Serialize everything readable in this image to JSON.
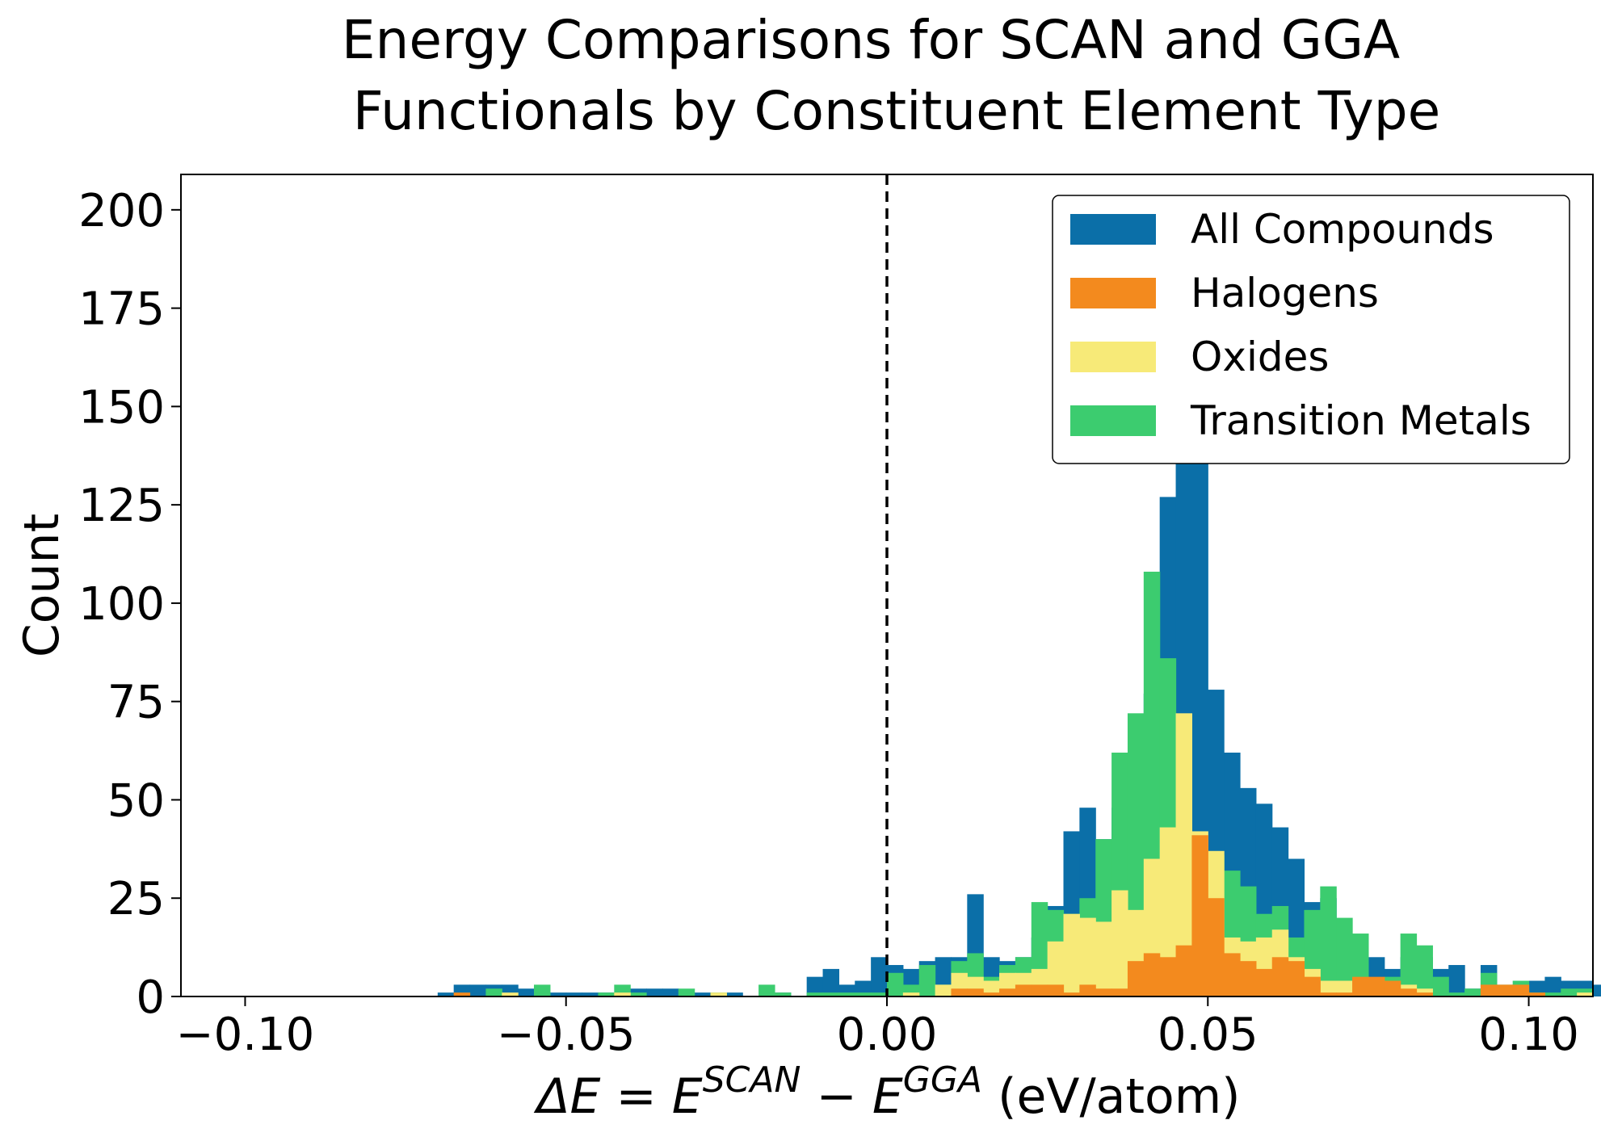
{
  "chart_data": {
    "type": "bar",
    "title_line1": "Energy Comparisons for SCAN and GGA",
    "title_line2": "Functionals by Constituent Element Type",
    "xlabel_prefix": "ΔE = E",
    "xlabel_sup1": "SCAN",
    "xlabel_mid": " − E",
    "xlabel_sup2": "GGA",
    "xlabel_suffix": " (eV/atom)",
    "ylabel": "Count",
    "xlim": [
      -0.11,
      0.11
    ],
    "ylim": [
      0,
      209
    ],
    "xticks": [
      -0.1,
      -0.05,
      0.0,
      0.05,
      0.1
    ],
    "xtick_labels": [
      "−0.10",
      "−0.05",
      "0.00",
      "0.05",
      "0.10"
    ],
    "yticks": [
      0,
      25,
      50,
      75,
      100,
      125,
      150,
      175,
      200
    ],
    "ytick_labels": [
      "0",
      "25",
      "50",
      "75",
      "100",
      "125",
      "150",
      "175",
      "200"
    ],
    "reference_line_x": 0.0,
    "legend_position": "top-right",
    "bin_start": -0.1,
    "bin_width": 0.0025,
    "series": [
      {
        "name": "All Compounds",
        "color": "#0b6fa8",
        "values": [
          0,
          0,
          0,
          0,
          0,
          0,
          0,
          0,
          0,
          0,
          0,
          0,
          1,
          3,
          3,
          3,
          3,
          2,
          1,
          1,
          1,
          1,
          1,
          1,
          2,
          2,
          2,
          1,
          1,
          1,
          1,
          0,
          0,
          1,
          0,
          5,
          7,
          3,
          4,
          10,
          8,
          7,
          9,
          10,
          10,
          26,
          10,
          9,
          10,
          15,
          23,
          42,
          48,
          40,
          48,
          58,
          77,
          127,
          199,
          173,
          78,
          62,
          53,
          49,
          43,
          35,
          24,
          25,
          6,
          8,
          10,
          7,
          10,
          10,
          7,
          8,
          2,
          8,
          2,
          3,
          4,
          5,
          4,
          4,
          3,
          1,
          0,
          2,
          1,
          1,
          1,
          0,
          0,
          0,
          0,
          0,
          0,
          0,
          0,
          0,
          0,
          0,
          0,
          0,
          0,
          0,
          0,
          0
        ]
      },
      {
        "name": "Transition Metals",
        "color": "#3ccc6f",
        "values": [
          0,
          0,
          0,
          0,
          0,
          0,
          0,
          0,
          0,
          0,
          0,
          0,
          0,
          0,
          0,
          2,
          0,
          0,
          3,
          0,
          0,
          0,
          1,
          3,
          1,
          0,
          0,
          2,
          0,
          1,
          0,
          0,
          3,
          1,
          0,
          1,
          1,
          1,
          1,
          1,
          6,
          3,
          8,
          3,
          9,
          11,
          5,
          8,
          10,
          24,
          22,
          21,
          25,
          40,
          62,
          72,
          108,
          86,
          43,
          40,
          36,
          32,
          28,
          21,
          23,
          15,
          22,
          28,
          20,
          16,
          3,
          5,
          16,
          13,
          5,
          1,
          2,
          6,
          3,
          4,
          1,
          1,
          2,
          2,
          0,
          0,
          3,
          0,
          0,
          2,
          0,
          0,
          0,
          0,
          0,
          0,
          0,
          0,
          0,
          0,
          0,
          0,
          0,
          0,
          0,
          0,
          0,
          0,
          0,
          0
        ]
      },
      {
        "name": "Oxides",
        "color": "#f7ea78",
        "values": [
          0,
          0,
          0,
          0,
          0,
          0,
          0,
          0,
          0,
          0,
          0,
          0,
          0,
          0,
          0,
          0,
          1,
          0,
          0,
          0,
          0,
          0,
          0,
          1,
          0,
          0,
          0,
          0,
          0,
          1,
          0,
          0,
          0,
          0,
          0,
          0,
          0,
          0,
          0,
          0,
          0,
          1,
          0,
          3,
          6,
          5,
          4,
          6,
          6,
          7,
          14,
          21,
          20,
          19,
          27,
          22,
          35,
          43,
          72,
          42,
          37,
          15,
          14,
          15,
          17,
          10,
          7,
          4,
          4,
          3,
          2,
          1,
          3,
          2,
          0,
          0,
          0,
          0,
          0,
          0,
          0,
          0,
          0,
          1,
          0,
          0,
          0,
          0,
          0,
          0,
          0,
          0,
          0,
          0,
          0,
          0,
          0,
          0,
          0,
          0,
          0,
          0,
          0,
          0,
          0,
          0,
          0,
          0,
          0,
          0
        ]
      },
      {
        "name": "Halogens",
        "color": "#f38a1e",
        "values": [
          0,
          0,
          0,
          0,
          0,
          0,
          0,
          0,
          0,
          0,
          0,
          0,
          0,
          1,
          0,
          0,
          0,
          0,
          0,
          0,
          0,
          0,
          0,
          0,
          0,
          0,
          0,
          0,
          0,
          0,
          0,
          0,
          0,
          0,
          0,
          0,
          0,
          0,
          0,
          0,
          0,
          0,
          0,
          0,
          2,
          2,
          1,
          2,
          3,
          3,
          3,
          1,
          3,
          2,
          2,
          9,
          11,
          10,
          13,
          41,
          25,
          11,
          9,
          7,
          10,
          9,
          5,
          1,
          1,
          5,
          5,
          4,
          2,
          1,
          0,
          0,
          0,
          3,
          3,
          3,
          1,
          0,
          0,
          0,
          0,
          0,
          0,
          0,
          1,
          0,
          0,
          1,
          0,
          0,
          0,
          0,
          0,
          0,
          0,
          0,
          0,
          0,
          0,
          0,
          0,
          0,
          0,
          0,
          0,
          0
        ]
      }
    ]
  }
}
